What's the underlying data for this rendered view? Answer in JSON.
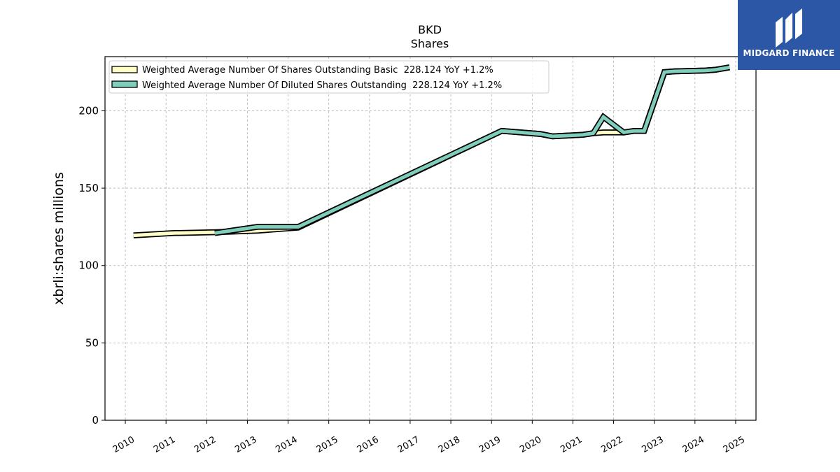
{
  "chart_data": {
    "type": "line",
    "title": "BKD",
    "subtitle": "Shares",
    "ylabel": "xbrli:shares millions",
    "xlabel": "",
    "ylim": [
      0,
      235
    ],
    "xlim": [
      2009.5,
      2025.5
    ],
    "yticks": [
      0,
      50,
      100,
      150,
      200
    ],
    "xticks": [
      "2010",
      "2011",
      "2012",
      "2013",
      "2014",
      "2015",
      "2016",
      "2017",
      "2018",
      "2019",
      "2020",
      "2021",
      "2022",
      "2023",
      "2024",
      "2025"
    ],
    "grid": true,
    "legend_position": "top-left",
    "series": [
      {
        "name": "Weighted Average Number Of Shares Outstanding Basic  228.124 YoY +1.2%",
        "color": "#ffffc6",
        "points": [
          [
            2010.2,
            119.5
          ],
          [
            2011.2,
            121.0
          ],
          [
            2012.2,
            121.5
          ],
          [
            2013.25,
            122.5
          ],
          [
            2014.25,
            124.5
          ],
          [
            2019.25,
            187.0
          ],
          [
            2020.2,
            185.0
          ],
          [
            2020.5,
            183.5
          ],
          [
            2021.25,
            184.5
          ],
          [
            2021.5,
            185.5
          ],
          [
            2021.75,
            186.0
          ],
          [
            2022.25,
            186.0
          ],
          [
            2022.5,
            187.0
          ],
          [
            2022.75,
            187.0
          ],
          [
            2023.25,
            225.0
          ],
          [
            2023.5,
            225.5
          ],
          [
            2024.25,
            226.0
          ],
          [
            2024.5,
            226.5
          ],
          [
            2024.85,
            228.1
          ]
        ]
      },
      {
        "name": "Weighted Average Number Of Diluted Shares Outstanding  228.124 YoY +1.2%",
        "color": "#7fcdbb",
        "points": [
          [
            2012.2,
            121.0
          ],
          [
            2013.25,
            125.0
          ],
          [
            2014.25,
            125.0
          ],
          [
            2019.25,
            187.0
          ],
          [
            2020.2,
            185.0
          ],
          [
            2020.5,
            183.5
          ],
          [
            2021.25,
            184.5
          ],
          [
            2021.5,
            185.5
          ],
          [
            2021.75,
            196.0
          ],
          [
            2022.25,
            186.0
          ],
          [
            2022.5,
            187.0
          ],
          [
            2022.75,
            187.0
          ],
          [
            2023.25,
            225.0
          ],
          [
            2023.5,
            225.5
          ],
          [
            2024.25,
            226.0
          ],
          [
            2024.5,
            226.5
          ],
          [
            2024.85,
            228.1
          ]
        ]
      }
    ]
  },
  "logo": {
    "text": "MIDGARD FINANCE",
    "background": "#2b57a6",
    "icon": "midgard-logo-icon"
  }
}
